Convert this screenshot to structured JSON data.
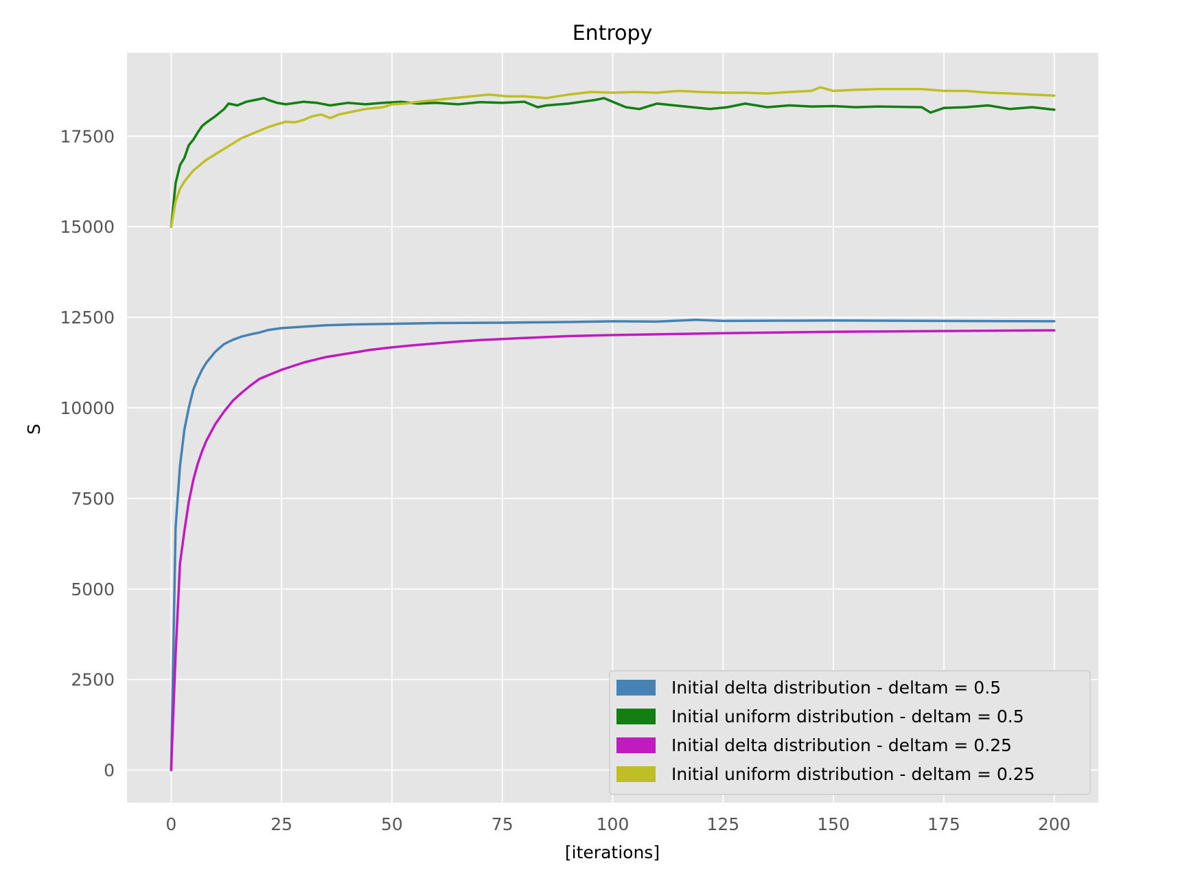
{
  "chart_data": {
    "type": "line",
    "title": "Entropy",
    "xlabel": "[iterations]",
    "ylabel": "S",
    "xlim": [
      -10,
      210
    ],
    "ylim": [
      -900,
      19800
    ],
    "x_ticks": [
      0,
      25,
      50,
      75,
      100,
      125,
      150,
      175,
      200
    ],
    "y_ticks": [
      0,
      2500,
      5000,
      7500,
      10000,
      12500,
      15000,
      17500
    ],
    "grid": true,
    "legend_position": "lower-right",
    "background_color": "#e5e5e5",
    "grid_color": "#ffffff",
    "series": [
      {
        "name": "Initial delta distribution - deltam = 0.5",
        "color": "#4682b4",
        "x": [
          0,
          1,
          2,
          3,
          4,
          5,
          6,
          7,
          8,
          10,
          12,
          14,
          16,
          18,
          20,
          22,
          25,
          30,
          35,
          40,
          50,
          60,
          75,
          90,
          100,
          110,
          119,
          125,
          150,
          175,
          200
        ],
        "y": [
          0,
          6700,
          8400,
          9400,
          10000,
          10500,
          10800,
          11050,
          11250,
          11550,
          11760,
          11880,
          11970,
          12030,
          12080,
          12150,
          12200,
          12240,
          12280,
          12300,
          12320,
          12340,
          12350,
          12370,
          12390,
          12380,
          12430,
          12400,
          12410,
          12400,
          12390
        ]
      },
      {
        "name": "Initial uniform distribution - deltam = 0.5",
        "color": "#117f11",
        "x": [
          0,
          1,
          2,
          3,
          4,
          5,
          6,
          7,
          8,
          10,
          12,
          13,
          15,
          17,
          19,
          21,
          22,
          24,
          26,
          30,
          33,
          36,
          40,
          44,
          48,
          52,
          56,
          60,
          65,
          70,
          75,
          80,
          83,
          85,
          90,
          93,
          96,
          98,
          100,
          103,
          106,
          110,
          114,
          118,
          122,
          126,
          130,
          135,
          140,
          145,
          150,
          155,
          160,
          165,
          170,
          172,
          175,
          180,
          185,
          190,
          195,
          200
        ],
        "y": [
          15000,
          16200,
          16700,
          16900,
          17250,
          17400,
          17600,
          17780,
          17880,
          18050,
          18250,
          18400,
          18350,
          18450,
          18500,
          18550,
          18500,
          18420,
          18380,
          18450,
          18420,
          18350,
          18420,
          18380,
          18420,
          18450,
          18400,
          18420,
          18380,
          18440,
          18420,
          18450,
          18300,
          18350,
          18400,
          18450,
          18500,
          18550,
          18450,
          18300,
          18250,
          18400,
          18350,
          18300,
          18250,
          18300,
          18400,
          18300,
          18350,
          18320,
          18330,
          18300,
          18320,
          18310,
          18300,
          18150,
          18280,
          18300,
          18350,
          18250,
          18300,
          18230
        ]
      },
      {
        "name": "Initial delta distribution - deltam = 0.25",
        "color": "#bf1bbf",
        "x": [
          0,
          1,
          2,
          3,
          4,
          5,
          6,
          7,
          8,
          10,
          12,
          14,
          16,
          18,
          20,
          22,
          25,
          30,
          35,
          40,
          45,
          50,
          55,
          60,
          65,
          70,
          75,
          80,
          90,
          100,
          110,
          125,
          150,
          175,
          200
        ],
        "y": [
          0,
          3200,
          5700,
          6600,
          7400,
          8000,
          8450,
          8800,
          9100,
          9550,
          9900,
          10200,
          10420,
          10620,
          10800,
          10900,
          11050,
          11250,
          11400,
          11500,
          11600,
          11670,
          11730,
          11780,
          11830,
          11870,
          11900,
          11930,
          11980,
          12010,
          12030,
          12060,
          12100,
          12120,
          12140
        ]
      },
      {
        "name": "Initial uniform distribution - deltam = 0.25",
        "color": "#bfbf25",
        "x": [
          0,
          1,
          2,
          3,
          4,
          5,
          6,
          7,
          8,
          10,
          12,
          14,
          16,
          18,
          20,
          22,
          24,
          26,
          28,
          30,
          32,
          34,
          36,
          38,
          40,
          44,
          48,
          50,
          53,
          56,
          60,
          64,
          68,
          72,
          76,
          80,
          85,
          90,
          95,
          100,
          105,
          110,
          115,
          120,
          125,
          130,
          135,
          140,
          145,
          147,
          150,
          155,
          160,
          165,
          170,
          175,
          180,
          185,
          190,
          195,
          200
        ],
        "y": [
          15000,
          15700,
          16050,
          16250,
          16400,
          16550,
          16650,
          16750,
          16850,
          17000,
          17150,
          17300,
          17450,
          17550,
          17650,
          17750,
          17830,
          17900,
          17880,
          17950,
          18050,
          18100,
          18000,
          18100,
          18150,
          18250,
          18300,
          18380,
          18400,
          18450,
          18500,
          18550,
          18600,
          18650,
          18600,
          18600,
          18550,
          18650,
          18720,
          18700,
          18720,
          18700,
          18750,
          18720,
          18700,
          18700,
          18680,
          18720,
          18750,
          18850,
          18750,
          18780,
          18800,
          18800,
          18800,
          18750,
          18750,
          18700,
          18680,
          18650,
          18620
        ]
      }
    ]
  }
}
